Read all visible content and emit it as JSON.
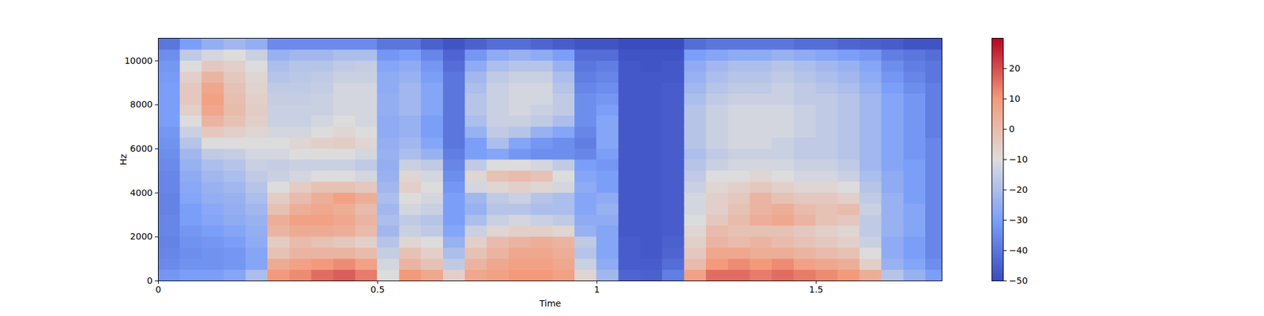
{
  "chart_data": {
    "type": "heatmap",
    "x_label": "Time",
    "y_label": "Hz",
    "xlim": [
      0,
      1.787
    ],
    "xticks": [
      0,
      0.5,
      1,
      1.5
    ],
    "ylim": [
      0,
      11025
    ],
    "yticks": [
      0,
      2000,
      4000,
      6000,
      8000,
      10000
    ],
    "x_bins": [
      0,
      0.05,
      0.1,
      0.15,
      0.2,
      0.25,
      0.3,
      0.35,
      0.4,
      0.45,
      0.5,
      0.55,
      0.6,
      0.65,
      0.7,
      0.75,
      0.8,
      0.85,
      0.9,
      0.95,
      1.0,
      1.05,
      1.1,
      1.15,
      1.2,
      1.25,
      1.3,
      1.35,
      1.4,
      1.45,
      1.5,
      1.55,
      1.6,
      1.65,
      1.7,
      1.75,
      1.787
    ],
    "y_bins": [
      0,
      500,
      1000,
      1500,
      2000,
      2500,
      3000,
      3500,
      4000,
      4500,
      5000,
      5500,
      6000,
      6500,
      7000,
      7500,
      8000,
      8500,
      9000,
      9500,
      10000,
      10500,
      11025
    ],
    "values": [
      [
        -32,
        -35,
        -36,
        -37,
        -36,
        -36,
        -37,
        -37,
        -36,
        -36,
        -35,
        -34,
        -33,
        -32,
        -30,
        -30,
        -30,
        -30,
        -31,
        -32,
        -34,
        -40
      ],
      [
        -30,
        -33,
        -34,
        -33,
        -32,
        -30,
        -30,
        -28,
        -27,
        -26,
        -24,
        -22,
        -18,
        -14,
        -10,
        -6,
        -4,
        -4,
        -6,
        -10,
        -16,
        -30
      ],
      [
        -30,
        -33,
        -33,
        -32,
        -30,
        -28,
        -27,
        -25,
        -24,
        -22,
        -20,
        -16,
        -10,
        -4,
        2,
        6,
        8,
        6,
        2,
        -4,
        -12,
        -25
      ],
      [
        -28,
        -32,
        -32,
        -30,
        -28,
        -26,
        -25,
        -24,
        -22,
        -20,
        -18,
        -15,
        -10,
        -6,
        -2,
        0,
        -1,
        -2,
        -4,
        -6,
        -10,
        -22
      ],
      [
        -20,
        -28,
        -28,
        -26,
        -25,
        -24,
        -22,
        -20,
        -18,
        -16,
        -14,
        -12,
        -10,
        -8,
        -6,
        -5,
        -6,
        -7,
        -8,
        -10,
        -14,
        -25
      ],
      [
        10,
        5,
        -2,
        -5,
        2,
        4,
        -2,
        -5,
        -10,
        -14,
        -15,
        -12,
        -10,
        -12,
        -14,
        -14,
        -15,
        -16,
        -18,
        -20,
        -24,
        -35
      ],
      [
        12,
        8,
        2,
        0,
        5,
        8,
        4,
        0,
        -5,
        -12,
        -14,
        -10,
        -8,
        -12,
        -14,
        -14,
        -15,
        -16,
        -17,
        -18,
        -22,
        -35
      ],
      [
        16,
        10,
        2,
        -2,
        5,
        8,
        6,
        4,
        -2,
        -10,
        -14,
        -10,
        -6,
        -10,
        -12,
        -14,
        -14,
        -15,
        -16,
        -18,
        -22,
        -35
      ],
      [
        18,
        12,
        2,
        -4,
        4,
        6,
        4,
        8,
        -2,
        -10,
        -14,
        -10,
        -5,
        -8,
        -10,
        -12,
        -12,
        -12,
        -14,
        -16,
        -20,
        -35
      ],
      [
        14,
        8,
        0,
        -6,
        0,
        2,
        0,
        4,
        -4,
        -12,
        -16,
        -12,
        -8,
        -10,
        -12,
        -12,
        -12,
        -12,
        -14,
        -15,
        -20,
        -35
      ],
      [
        -10,
        -12,
        -15,
        -18,
        -22,
        -20,
        -22,
        -20,
        -22,
        -24,
        -25,
        -24,
        -25,
        -26,
        -26,
        -25,
        -25,
        -26,
        -26,
        -28,
        -32,
        -40
      ],
      [
        10,
        2,
        -2,
        -8,
        -14,
        -16,
        -12,
        -10,
        -6,
        -8,
        -14,
        -20,
        -22,
        -24,
        -24,
        -22,
        -22,
        -22,
        -24,
        -26,
        -30,
        -40
      ],
      [
        6,
        -2,
        -6,
        -10,
        -16,
        -18,
        -14,
        -12,
        -10,
        -12,
        -16,
        -24,
        -28,
        -30,
        -30,
        -28,
        -28,
        -28,
        -30,
        -32,
        -36,
        -45
      ],
      [
        -6,
        -16,
        -20,
        -24,
        -28,
        -30,
        -30,
        -30,
        -32,
        -34,
        -36,
        -38,
        -40,
        -40,
        -40,
        -40,
        -40,
        -40,
        -40,
        -42,
        -44,
        -48
      ],
      [
        6,
        2,
        -2,
        -6,
        -14,
        -20,
        -24,
        -22,
        -12,
        -8,
        -16,
        -30,
        -30,
        -24,
        -20,
        -18,
        -18,
        -20,
        -22,
        -26,
        -32,
        -45
      ],
      [
        8,
        6,
        2,
        0,
        -8,
        -14,
        -18,
        -16,
        -8,
        -2,
        -10,
        -28,
        -20,
        -16,
        -14,
        -14,
        -14,
        -14,
        -16,
        -20,
        -26,
        -42
      ],
      [
        10,
        8,
        6,
        2,
        -6,
        -12,
        -18,
        -14,
        -6,
        0,
        -10,
        -32,
        -28,
        -18,
        -14,
        -12,
        -12,
        -12,
        -14,
        -18,
        -24,
        -42
      ],
      [
        10,
        8,
        6,
        4,
        -6,
        -14,
        -20,
        -18,
        -8,
        -2,
        -12,
        -34,
        -32,
        -24,
        -16,
        -14,
        -12,
        -12,
        -14,
        -18,
        -26,
        -44
      ],
      [
        8,
        6,
        4,
        2,
        -8,
        -16,
        -20,
        -20,
        -12,
        -10,
        -16,
        -34,
        -34,
        -28,
        -20,
        -16,
        -16,
        -18,
        -20,
        -24,
        -30,
        -46
      ],
      [
        -8,
        -14,
        -18,
        -16,
        -24,
        -26,
        -28,
        -28,
        -26,
        -28,
        -30,
        -36,
        -38,
        -36,
        -34,
        -34,
        -34,
        -36,
        -38,
        -40,
        -42,
        -48
      ],
      [
        -22,
        -26,
        -28,
        -28,
        -28,
        -26,
        -24,
        -26,
        -30,
        -30,
        -32,
        -30,
        -28,
        -28,
        -28,
        -30,
        -32,
        -34,
        -36,
        -38,
        -42,
        -48
      ],
      [
        -44,
        -46,
        -46,
        -46,
        -47,
        -47,
        -47,
        -47,
        -47,
        -47,
        -47,
        -47,
        -47,
        -47,
        -47,
        -47,
        -47,
        -47,
        -47,
        -47,
        -48,
        -50
      ],
      [
        -45,
        -46,
        -47,
        -47,
        -47,
        -47,
        -47,
        -47,
        -47,
        -47,
        -47,
        -47,
        -47,
        -47,
        -47,
        -47,
        -47,
        -47,
        -47,
        -48,
        -48,
        -50
      ],
      [
        -38,
        -42,
        -44,
        -45,
        -46,
        -46,
        -46,
        -46,
        -46,
        -46,
        -46,
        -46,
        -46,
        -46,
        -46,
        -46,
        -46,
        -46,
        -47,
        -47,
        -48,
        -50
      ],
      [
        8,
        0,
        -4,
        -6,
        -8,
        -10,
        -12,
        -12,
        -14,
        -16,
        -18,
        -20,
        -18,
        -18,
        -18,
        -18,
        -20,
        -22,
        -24,
        -26,
        -30,
        -42
      ],
      [
        16,
        10,
        6,
        2,
        0,
        -4,
        -6,
        -6,
        -8,
        -10,
        -14,
        -16,
        -14,
        -14,
        -14,
        -14,
        -16,
        -18,
        -20,
        -22,
        -28,
        -40
      ],
      [
        16,
        12,
        6,
        0,
        -2,
        0,
        -2,
        -4,
        -6,
        -10,
        -12,
        -14,
        -12,
        -12,
        -12,
        -12,
        -14,
        -16,
        -18,
        -20,
        -26,
        -40
      ],
      [
        14,
        10,
        4,
        2,
        -2,
        4,
        2,
        2,
        -4,
        -8,
        -12,
        -14,
        -12,
        -12,
        -12,
        -12,
        -14,
        -16,
        -18,
        -20,
        -26,
        -40
      ],
      [
        16,
        12,
        4,
        0,
        -2,
        6,
        4,
        -2,
        -6,
        -10,
        -12,
        -14,
        -14,
        -12,
        -12,
        -12,
        -14,
        -14,
        -16,
        -18,
        -24,
        -40
      ],
      [
        14,
        8,
        2,
        -2,
        -4,
        2,
        0,
        -4,
        -8,
        -12,
        -14,
        -16,
        -16,
        -14,
        -14,
        -14,
        -16,
        -16,
        -18,
        -20,
        -26,
        -42
      ],
      [
        12,
        6,
        0,
        -4,
        -6,
        -2,
        -2,
        -4,
        -8,
        -12,
        -14,
        -16,
        -16,
        -16,
        -16,
        -16,
        -16,
        -18,
        -20,
        -22,
        -28,
        -42
      ],
      [
        10,
        4,
        -2,
        -6,
        -8,
        -4,
        0,
        -6,
        -10,
        -14,
        -16,
        -18,
        -18,
        -18,
        -18,
        -18,
        -18,
        -20,
        -22,
        -24,
        -30,
        -44
      ],
      [
        4,
        -6,
        -10,
        -14,
        -16,
        -16,
        -14,
        -16,
        -18,
        -20,
        -22,
        -22,
        -22,
        -22,
        -22,
        -22,
        -22,
        -24,
        -26,
        -28,
        -32,
        -45
      ],
      [
        -18,
        -24,
        -26,
        -26,
        -24,
        -24,
        -24,
        -24,
        -26,
        -26,
        -28,
        -28,
        -28,
        -28,
        -28,
        -28,
        -28,
        -30,
        -32,
        -34,
        -38,
        -46
      ],
      [
        -24,
        -28,
        -30,
        -30,
        -28,
        -28,
        -28,
        -30,
        -30,
        -30,
        -30,
        -32,
        -32,
        -32,
        -32,
        -32,
        -32,
        -34,
        -36,
        -38,
        -40,
        -48
      ],
      [
        -30,
        -34,
        -36,
        -36,
        -36,
        -36,
        -36,
        -36,
        -36,
        -36,
        -36,
        -36,
        -36,
        -38,
        -38,
        -38,
        -38,
        -38,
        -40,
        -40,
        -42,
        -48
      ]
    ],
    "colorbar": {
      "range": [
        -50,
        30
      ],
      "ticks": [
        -50,
        -40,
        -30,
        -20,
        -10,
        0,
        10,
        20
      ]
    }
  }
}
